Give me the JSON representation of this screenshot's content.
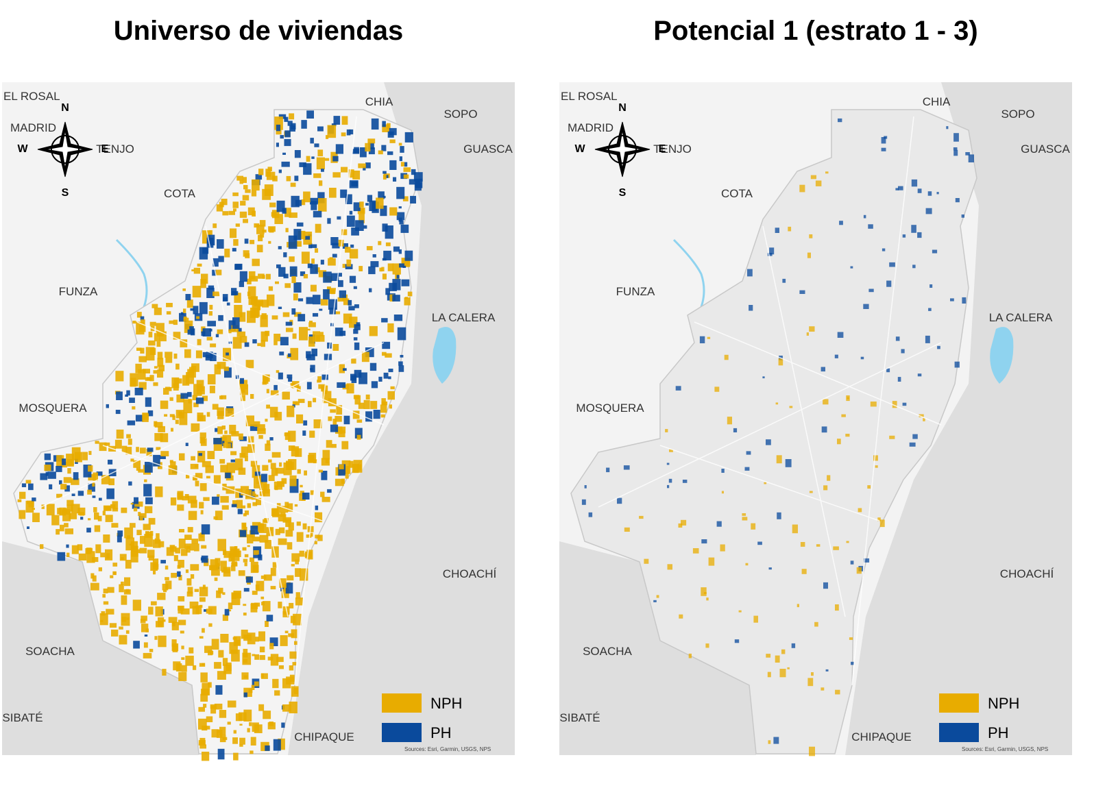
{
  "maps": [
    {
      "title": "Universo de viviendas",
      "places": [
        "EL ROSAL",
        "CHIA",
        "SOPO",
        "MADRID",
        "TENJO",
        "GUASCA",
        "COTA",
        "FUNZA",
        "LA CALERA",
        "MOSQUERA",
        "CHOACHÍ",
        "SOACHA",
        "SIBATÉ",
        "CHIPAQUE"
      ],
      "compass": [
        "N",
        "W",
        "E",
        "S"
      ],
      "legend": [
        {
          "label": "NPH",
          "color": "#e8ac00"
        },
        {
          "label": "PH",
          "color": "#0a4a9c"
        }
      ],
      "source": "Sources: Esri, Garmin, USGS, NPS"
    },
    {
      "title": "Potencial 1 (estrato 1 - 3)",
      "places": [
        "EL ROSAL",
        "CHIA",
        "SOPO",
        "MADRID",
        "TENJO",
        "GUASCA",
        "COTA",
        "FUNZA",
        "LA CALERA",
        "MOSQUERA",
        "CHOACHÍ",
        "SOACHA",
        "SIBATÉ",
        "CHIPAQUE"
      ],
      "compass": [
        "N",
        "W",
        "E",
        "S"
      ],
      "legend": [
        {
          "label": "NPH",
          "color": "#e8ac00"
        },
        {
          "label": "PH",
          "color": "#0a4a9c"
        }
      ],
      "source": "Sources: Esri, Garmin, USGS, NPS"
    }
  ]
}
